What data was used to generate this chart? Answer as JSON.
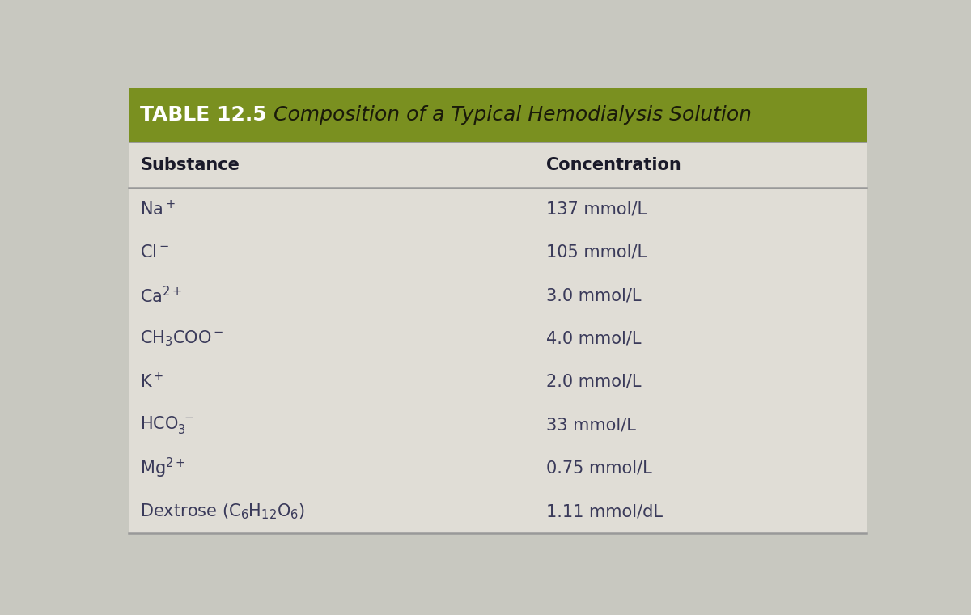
{
  "table_number": "TABLE 12.5",
  "table_title": "  Composition of a Typical Hemodialysis Solution",
  "header_bg_color": "#7a9020",
  "header_text_color": "#ffffff",
  "col_header_substance": "Substance",
  "col_header_concentration": "Concentration",
  "rows": [
    {
      "substance": "Na$^+$",
      "concentration": "137 mmol/L"
    },
    {
      "substance": "Cl$^-$",
      "concentration": "105 mmol/L"
    },
    {
      "substance": "Ca$^{2+}$",
      "concentration": "3.0 mmol/L"
    },
    {
      "substance": "CH$_3$COO$^-$",
      "concentration": "4.0 mmol/L"
    },
    {
      "substance": "K$^+$",
      "concentration": "2.0 mmol/L"
    },
    {
      "substance": "HCO$_3^{\\bar{\\phantom{x}}}$",
      "concentration": "33 mmol/L"
    },
    {
      "substance": "Mg$^{2+}$",
      "concentration": "0.75 mmol/L"
    },
    {
      "substance": "Dextrose (C$_6$H$_{12}$O$_6$)",
      "concentration": "1.11 mmol/dL"
    }
  ],
  "bg_color": "#c8c8c0",
  "table_bg_color": "#e0ddd6",
  "row_text_color": "#3a3a5a",
  "col_header_text_color": "#1a1a2a",
  "divider_color": "#999999",
  "font_size_header": 18,
  "font_size_table_title": 18,
  "font_size_col_header": 15,
  "font_size_row": 15
}
